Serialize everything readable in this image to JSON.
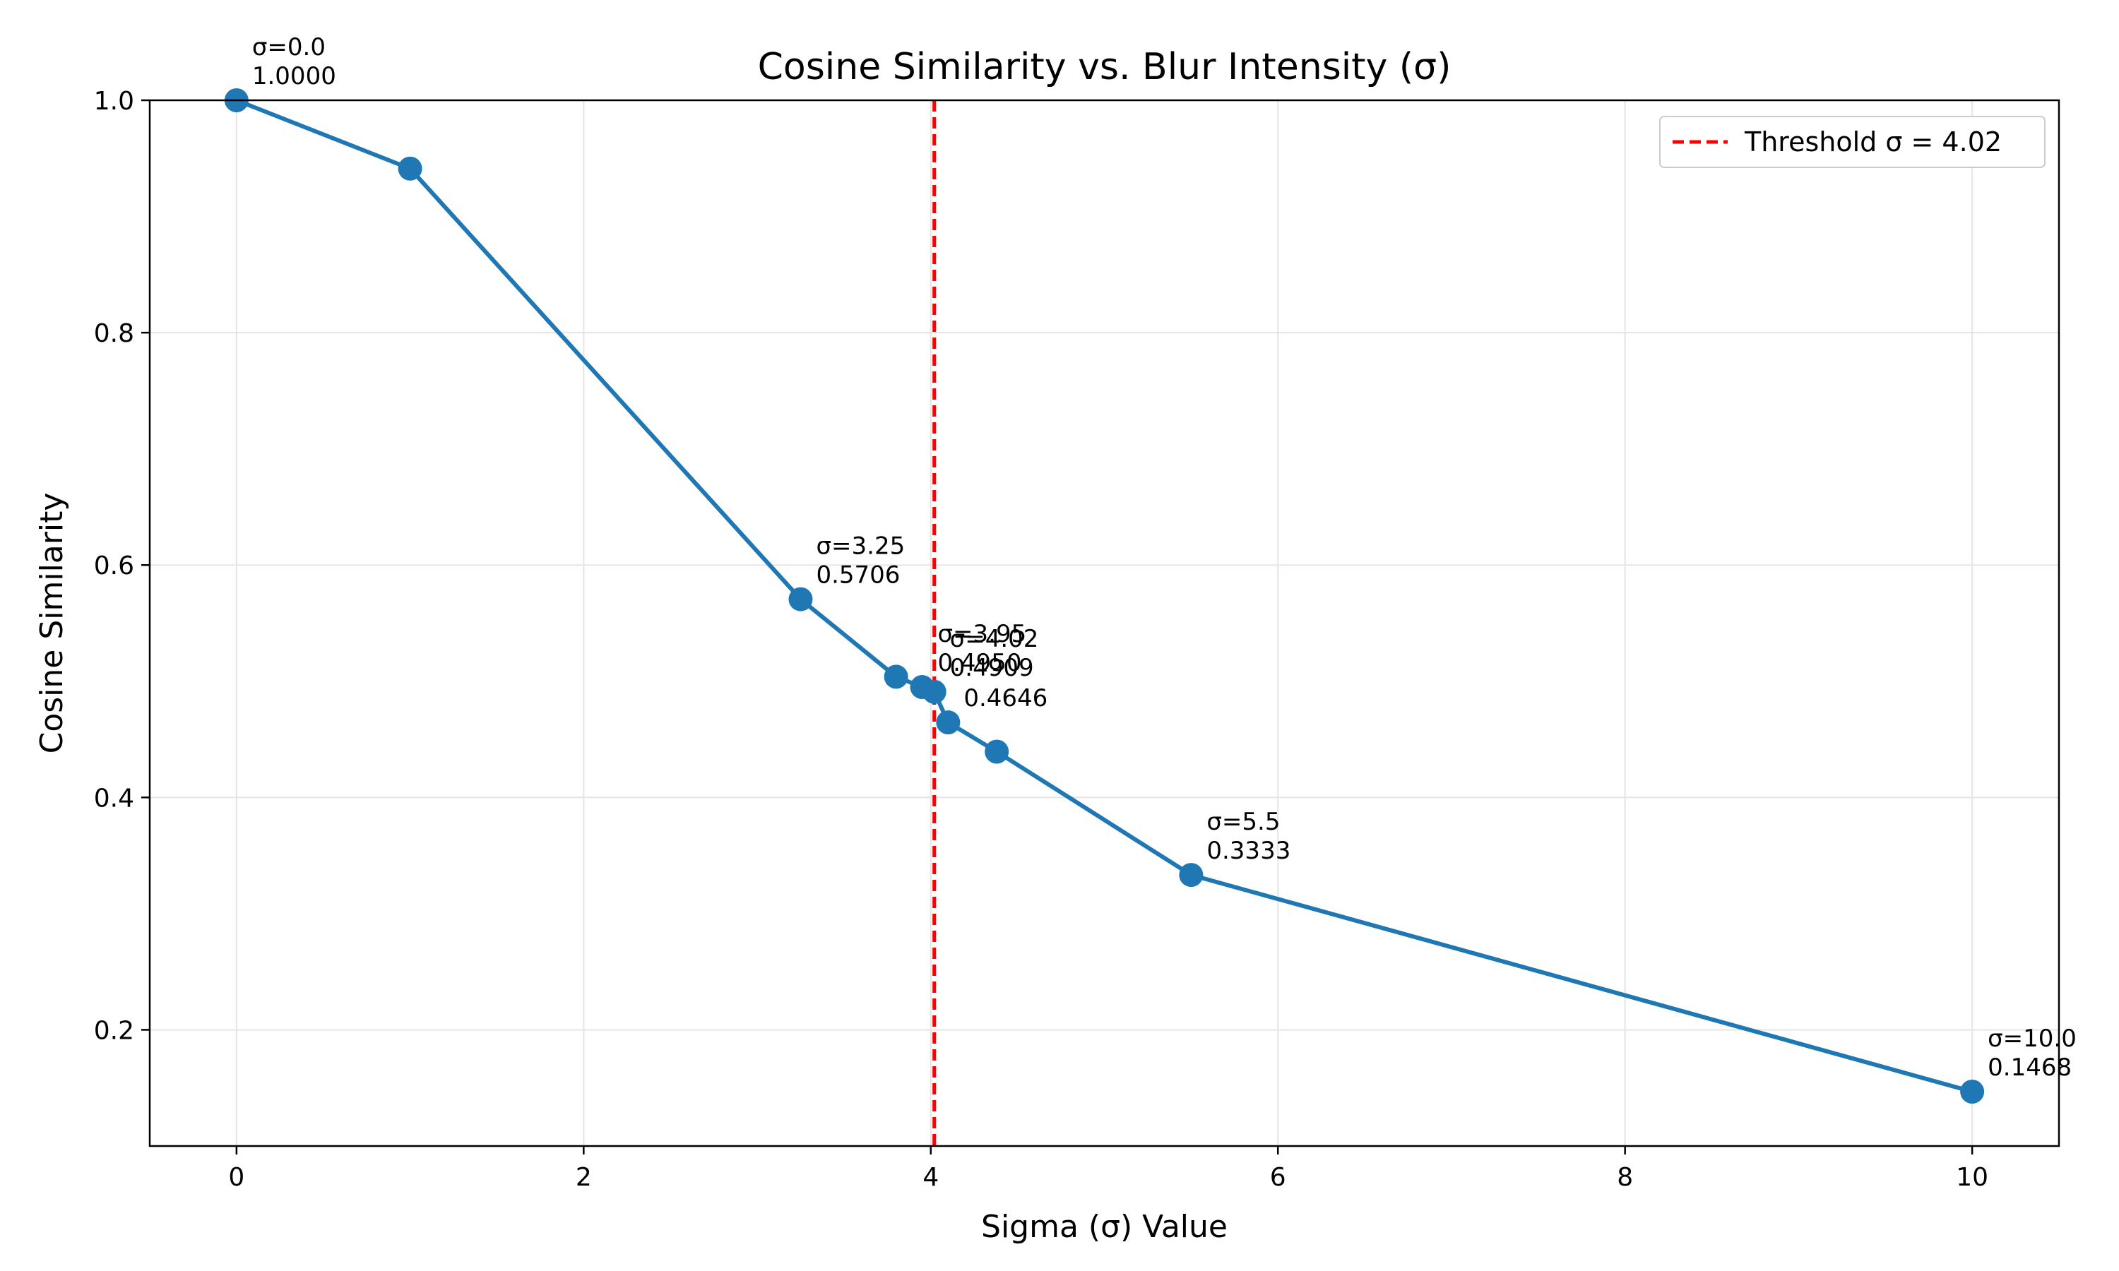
{
  "chart_data": {
    "type": "line",
    "title": "Cosine Similarity vs. Blur Intensity (σ)",
    "xlabel": "Sigma (σ) Value",
    "ylabel": "Cosine Similarity",
    "xlim": [
      -0.5,
      10.5
    ],
    "ylim": [
      0.1,
      1.0
    ],
    "xticks": [
      0,
      2,
      4,
      6,
      8,
      10
    ],
    "yticks": [
      0.2,
      0.4,
      0.6,
      0.8,
      1.0
    ],
    "xtick_labels": [
      "0",
      "2",
      "4",
      "6",
      "8",
      "10"
    ],
    "ytick_labels": [
      "0.2",
      "0.4",
      "0.6",
      "0.8",
      "1.0"
    ],
    "grid": true,
    "series": [
      {
        "color": "#1f77b4",
        "x": [
          0.0,
          1.0,
          3.25,
          3.8,
          3.95,
          4.02,
          4.1,
          4.38,
          5.5,
          10.0
        ],
        "y": [
          1.0,
          0.9412,
          0.5706,
          0.5039,
          0.495,
          0.4909,
          0.4646,
          0.4394,
          0.3333,
          0.1468
        ]
      }
    ],
    "annotations": [
      {
        "x": 0.0,
        "y": 1.0,
        "line1": "σ=0.0",
        "line2": "1.0000"
      },
      {
        "x": 3.25,
        "y": 0.5706,
        "line1": "σ=3.25",
        "line2": "0.5706"
      },
      {
        "x": 3.95,
        "y": 0.495,
        "line1": "σ=3.95",
        "line2": "0.4950"
      },
      {
        "x": 4.02,
        "y": 0.4909,
        "line1": "σ=4.02",
        "line2": "0.4909"
      },
      {
        "x": 4.1,
        "y": 0.4646,
        "line1": "",
        "line2": "0.4646"
      },
      {
        "x": 5.5,
        "y": 0.3333,
        "line1": "σ=5.5",
        "line2": "0.3333"
      },
      {
        "x": 10.0,
        "y": 0.1468,
        "line1": "σ=10.0",
        "line2": "0.1468"
      }
    ],
    "threshold": {
      "x": 4.02,
      "color": "#ff0000",
      "label": "Threshold σ = 4.02"
    },
    "legend": {
      "position": "top-right"
    }
  }
}
